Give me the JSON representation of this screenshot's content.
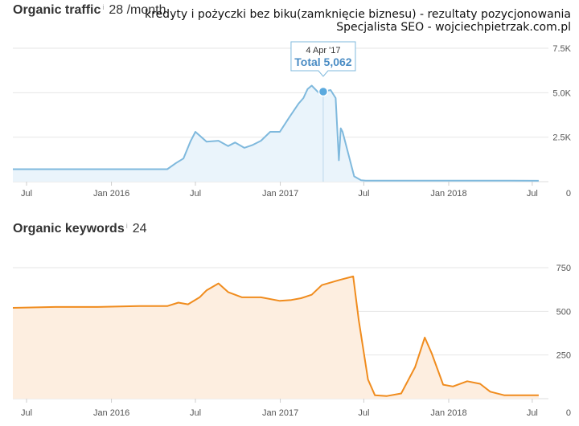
{
  "header": {
    "caption_line1": "kredyty i pożyczki bez biku(zamknięcie biznesu) - rezultaty pozycjonowania",
    "caption_line2": "Specjalista SEO - wojciechpietrzak.com.pl"
  },
  "panels": [
    {
      "title": "Organic traffic",
      "info_mark": "i",
      "value": "28 /month",
      "tooltip": {
        "date": "4 Apr '17",
        "label": "Total 5,062"
      }
    },
    {
      "title": "Organic keywords",
      "info_mark": "i",
      "value": "24"
    }
  ],
  "colors": {
    "traffic_line": "#7fb9dd",
    "traffic_fill": "#eaf4fb",
    "traffic_point": "#5aa9de",
    "keywords_line": "#f08c1e",
    "keywords_fill": "#fdeee0",
    "grid": "#e6e6e6"
  },
  "chart_data": [
    {
      "type": "area",
      "x_ticks": [
        "Jul",
        "Jan 2016",
        "Jul",
        "Jan 2017",
        "Jul",
        "Jan 2018",
        "Jul"
      ],
      "x_tick_positions": [
        "2015-07",
        "2016-01",
        "2016-07",
        "2017-01",
        "2017-07",
        "2018-01",
        "2018-07"
      ],
      "y_ticks": [
        "0",
        "2.5K",
        "5.0K",
        "7.5K"
      ],
      "y_tick_values": [
        0,
        2500,
        5000,
        7500
      ],
      "ylim": [
        0,
        7500
      ],
      "grid": true,
      "x": [
        "2015-06-01",
        "2015-09-01",
        "2015-12-01",
        "2016-03-01",
        "2016-05-01",
        "2016-05-20",
        "2016-06-05",
        "2016-06-20",
        "2016-07-01",
        "2016-07-25",
        "2016-08-20",
        "2016-09-10",
        "2016-09-25",
        "2016-10-15",
        "2016-11-01",
        "2016-11-20",
        "2016-12-10",
        "2016-12-31",
        "2017-01-20",
        "2017-02-10",
        "2017-02-20",
        "2017-03-01",
        "2017-03-10",
        "2017-03-25",
        "2017-04-04",
        "2017-04-20",
        "2017-05-01",
        "2017-05-08",
        "2017-05-12",
        "2017-05-16",
        "2017-05-25",
        "2017-06-10",
        "2017-06-25",
        "2017-07-05",
        "2017-08-01",
        "2017-10-01",
        "2018-01-01",
        "2018-04-01",
        "2018-07-15"
      ],
      "values": [
        700,
        700,
        700,
        700,
        700,
        1050,
        1300,
        2250,
        2800,
        2250,
        2300,
        2000,
        2200,
        1900,
        2050,
        2300,
        2800,
        2800,
        3600,
        4400,
        4700,
        5200,
        5400,
        5000,
        5062,
        5150,
        4700,
        1200,
        3000,
        2800,
        1900,
        300,
        80,
        60,
        60,
        60,
        60,
        60,
        50
      ]
    },
    {
      "type": "area",
      "x_ticks": [
        "Jul",
        "Jan 2016",
        "Jul",
        "Jan 2017",
        "Jul",
        "Jan 2018",
        "Jul"
      ],
      "x_tick_positions": [
        "2015-07",
        "2016-01",
        "2016-07",
        "2017-01",
        "2017-07",
        "2018-01",
        "2018-07"
      ],
      "y_ticks": [
        "0",
        "250",
        "500",
        "750"
      ],
      "y_tick_values": [
        0,
        250,
        500,
        750
      ],
      "ylim": [
        0,
        750
      ],
      "grid": true,
      "x": [
        "2015-06-01",
        "2015-09-01",
        "2015-12-01",
        "2016-03-01",
        "2016-05-01",
        "2016-05-25",
        "2016-06-15",
        "2016-07-10",
        "2016-07-25",
        "2016-08-20",
        "2016-09-10",
        "2016-10-10",
        "2016-11-20",
        "2016-12-31",
        "2017-01-25",
        "2017-02-15",
        "2017-03-10",
        "2017-04-01",
        "2017-05-10",
        "2017-06-08",
        "2017-06-20",
        "2017-07-10",
        "2017-07-25",
        "2017-08-20",
        "2017-09-20",
        "2017-10-20",
        "2017-11-10",
        "2017-11-25",
        "2017-12-20",
        "2018-01-10",
        "2018-02-10",
        "2018-03-10",
        "2018-04-01",
        "2018-05-01",
        "2018-05-20",
        "2018-07-15"
      ],
      "values": [
        520,
        525,
        525,
        530,
        530,
        550,
        540,
        580,
        620,
        660,
        610,
        580,
        580,
        560,
        565,
        575,
        595,
        650,
        680,
        700,
        450,
        110,
        20,
        15,
        30,
        180,
        350,
        260,
        80,
        70,
        100,
        85,
        40,
        20,
        20,
        20
      ]
    }
  ]
}
